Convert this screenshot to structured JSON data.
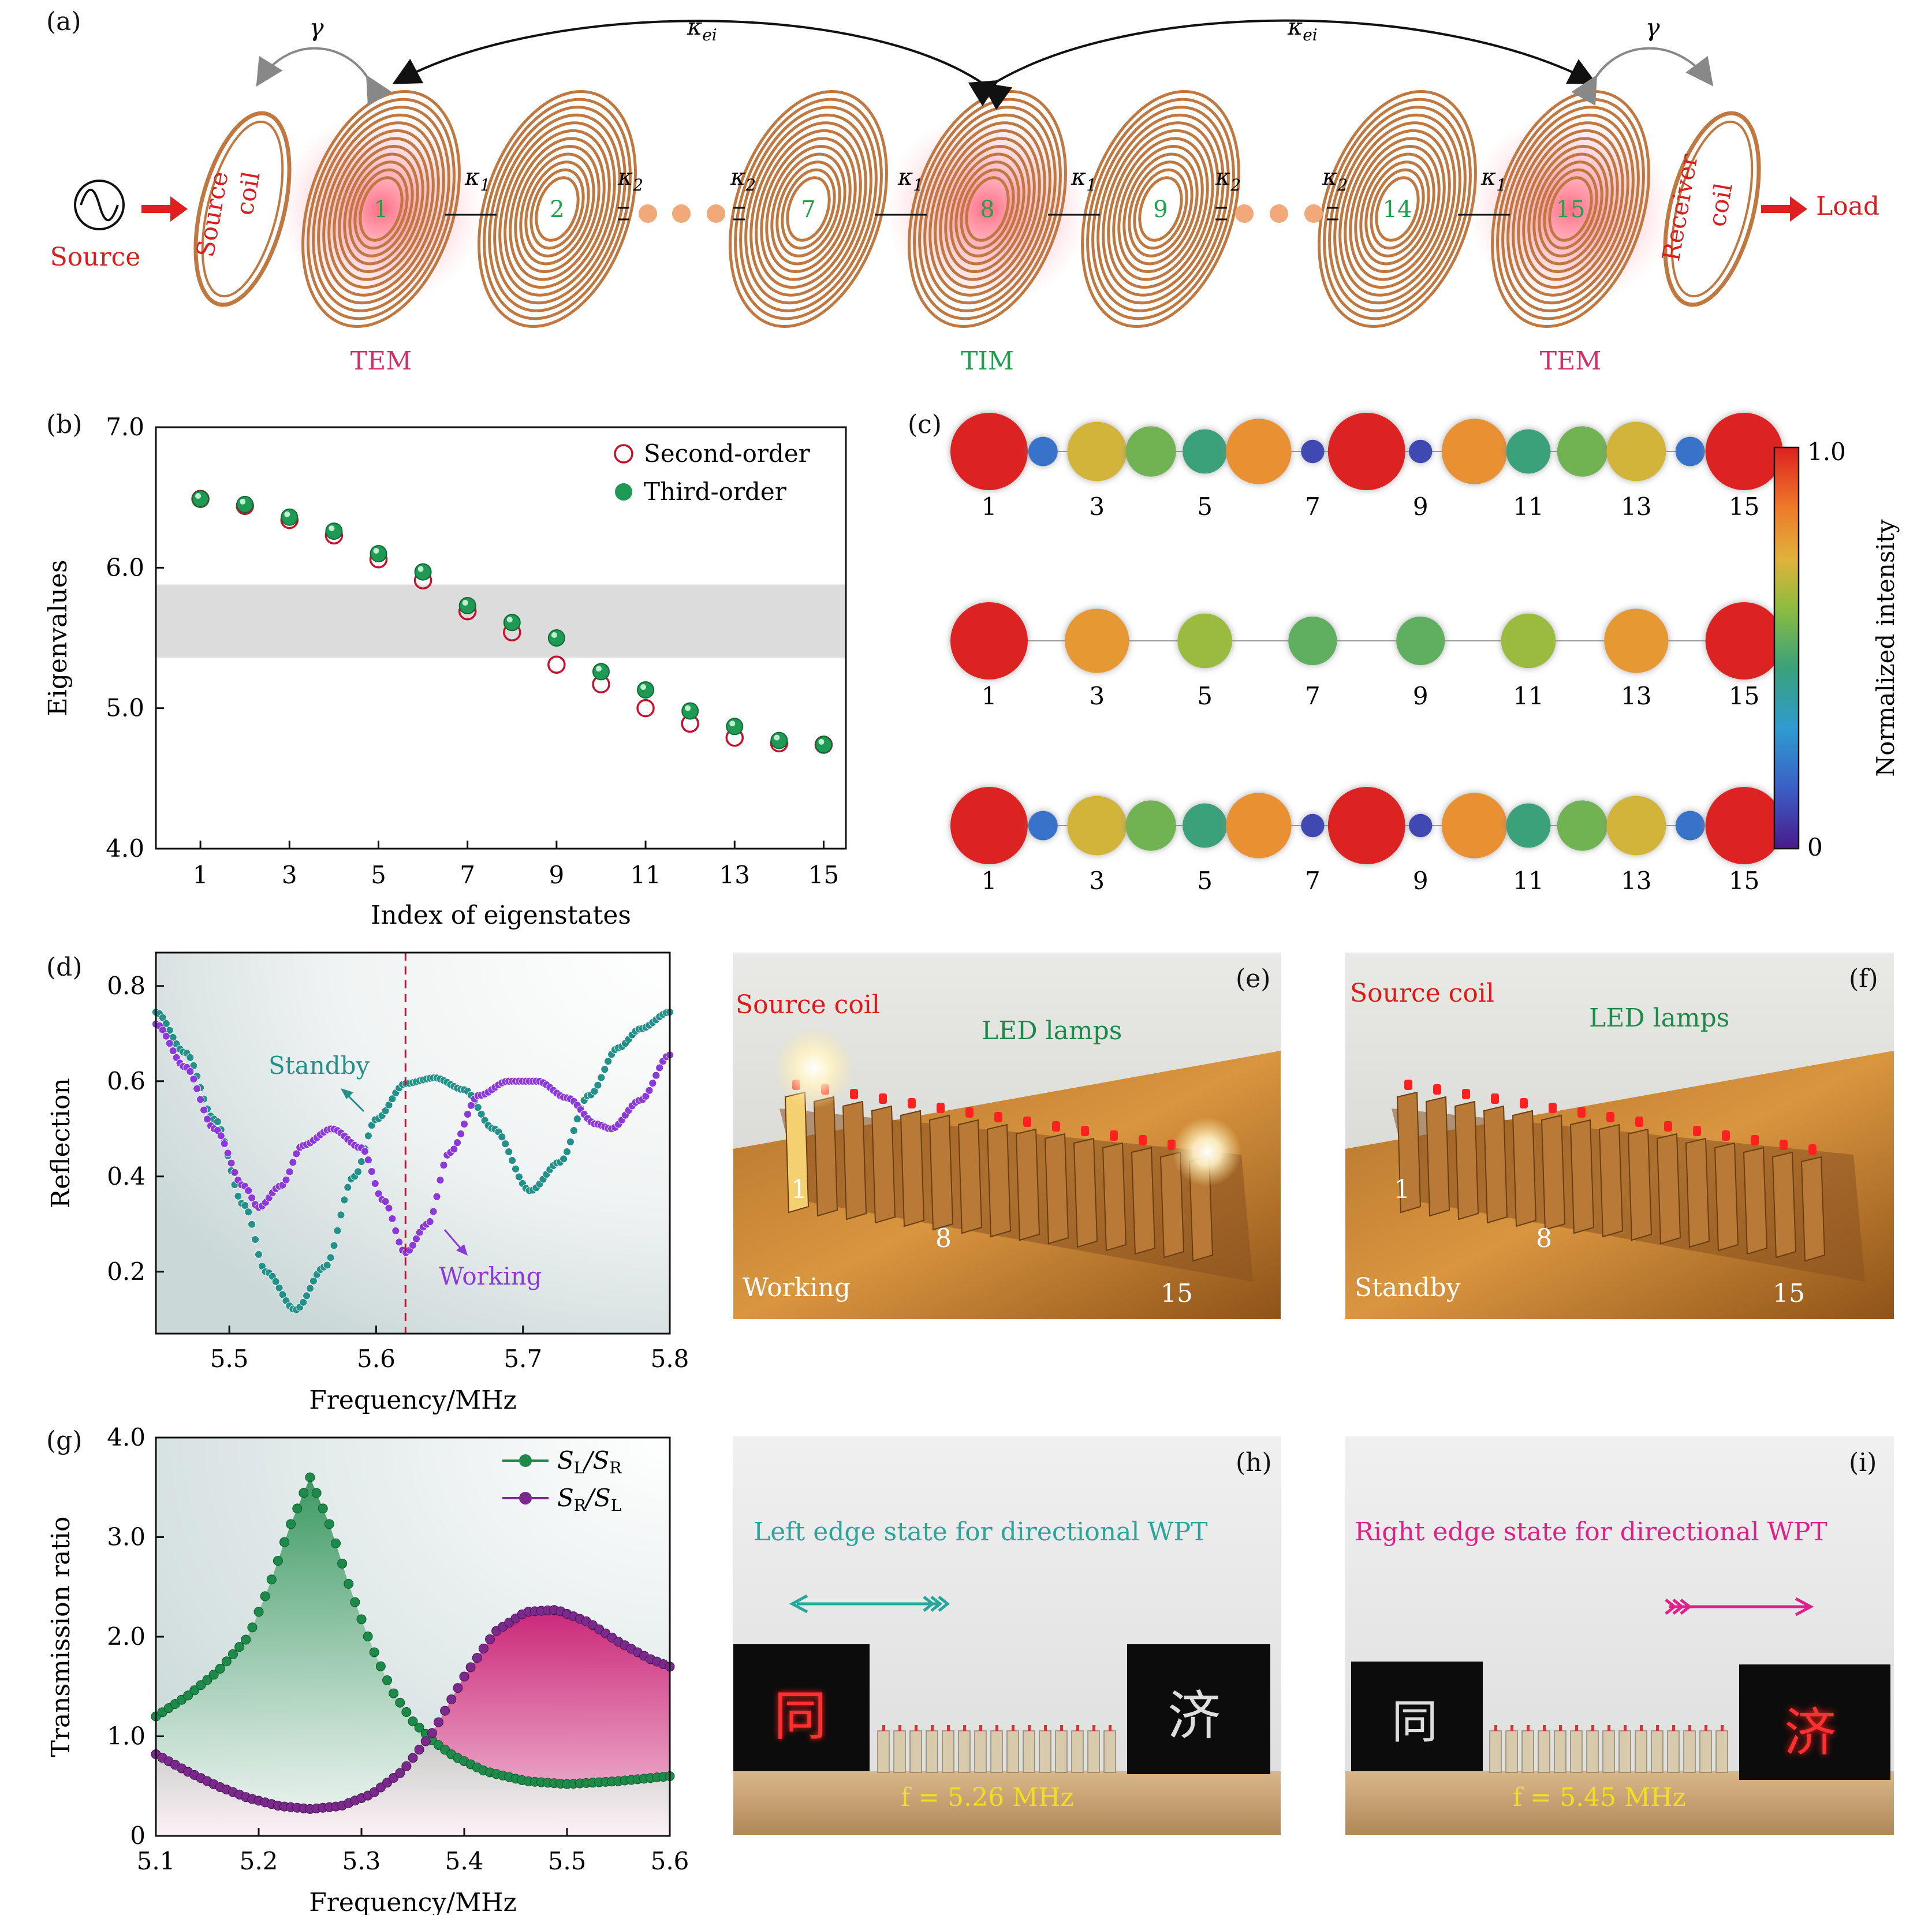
{
  "panel_a": {
    "letter": "(a)",
    "source_label": "Source",
    "source_coil_label": "Source\ncoil",
    "receiver_coil_label": "Receiver\ncoil",
    "load_label": "Load",
    "gamma": "γ",
    "kappa_ei": "κei",
    "kappa1": "κ1",
    "kappa2": "κ2",
    "coil_numbers": [
      "1",
      "2",
      "7",
      "8",
      "9",
      "14",
      "15"
    ],
    "mode_labels": [
      "TEM",
      "TIM",
      "TEM"
    ],
    "colors": {
      "tem": "#d0306a",
      "tim": "#1fa04a",
      "source": "#d81e1e",
      "coil": "#c07840"
    }
  },
  "panel_b": {
    "letter": "(b)",
    "legend": [
      "Second-order",
      "Third-order"
    ],
    "chart_data": {
      "type": "scatter",
      "xlabel": "Index of eigenstates",
      "ylabel": "Eigenvalues",
      "xlim": [
        0.0,
        15.5
      ],
      "ylim": [
        4.0,
        7.0
      ],
      "xticks": [
        1,
        3,
        5,
        7,
        9,
        11,
        13,
        15
      ],
      "yticks": [
        "4.0",
        "5.0",
        "6.0",
        "7.0"
      ],
      "band": [
        5.36,
        5.88
      ],
      "x": [
        1,
        2,
        3,
        4,
        5,
        6,
        7,
        8,
        9,
        10,
        11,
        12,
        13,
        14,
        15
      ],
      "series": [
        {
          "name": "Second-order",
          "values": [
            6.49,
            6.44,
            6.34,
            6.23,
            6.06,
            5.91,
            5.69,
            5.54,
            5.31,
            5.17,
            5.0,
            4.89,
            4.79,
            4.75,
            4.74
          ]
        },
        {
          "name": "Third-order",
          "values": [
            6.49,
            6.45,
            6.36,
            6.26,
            6.1,
            5.97,
            5.73,
            5.61,
            5.5,
            5.26,
            5.13,
            4.98,
            4.87,
            4.77,
            4.74
          ]
        }
      ]
    }
  },
  "panel_c": {
    "letter": "(c)",
    "colorbar": {
      "max": "1.0",
      "min": "0",
      "label": "Normalized intensity"
    },
    "chart_data": {
      "type": "heatmap",
      "site_labels": [
        "1",
        "3",
        "5",
        "7",
        "9",
        "11",
        "13",
        "15"
      ],
      "rows": [
        [
          1.0,
          0.2,
          0.7,
          0.55,
          0.45,
          0.8,
          0.1,
          1.0,
          0.1,
          0.8,
          0.45,
          0.55,
          0.7,
          0.2,
          1.0
        ],
        [
          1.0,
          0.0,
          0.78,
          0.0,
          0.62,
          0.0,
          0.52,
          0.0,
          0.52,
          0.0,
          0.62,
          0.0,
          0.78,
          0.0,
          1.0
        ],
        [
          1.0,
          0.2,
          0.7,
          0.55,
          0.45,
          0.8,
          0.1,
          1.0,
          0.1,
          0.8,
          0.45,
          0.55,
          0.7,
          0.2,
          1.0
        ]
      ]
    }
  },
  "panel_d": {
    "letter": "(d)",
    "standby_label": "Standby",
    "working_label": "Working",
    "chart_data": {
      "type": "line",
      "xlabel": "Frequency/MHz",
      "ylabel": "Reflection",
      "xlim": [
        5.45,
        5.8
      ],
      "ylim": [
        0.07,
        0.87
      ],
      "xticks": [
        "5.5",
        "5.6",
        "5.7",
        "5.8"
      ],
      "yticks": [
        "0.2",
        "0.4",
        "0.6",
        "0.8"
      ],
      "marker_x": 5.62,
      "series": [
        {
          "name": "Standby",
          "color": "#23918a",
          "x": [
            5.45,
            5.47,
            5.49,
            5.51,
            5.525,
            5.545,
            5.565,
            5.585,
            5.6,
            5.62,
            5.64,
            5.66,
            5.68,
            5.705,
            5.725,
            5.745,
            5.765,
            5.78,
            5.8
          ],
          "y": [
            0.745,
            0.66,
            0.52,
            0.34,
            0.2,
            0.12,
            0.21,
            0.4,
            0.52,
            0.595,
            0.607,
            0.582,
            0.5,
            0.37,
            0.43,
            0.57,
            0.67,
            0.71,
            0.745
          ]
        },
        {
          "name": "Working",
          "color": "#8b39d9",
          "x": [
            5.45,
            5.47,
            5.49,
            5.51,
            5.52,
            5.535,
            5.55,
            5.57,
            5.59,
            5.605,
            5.62,
            5.635,
            5.65,
            5.67,
            5.69,
            5.71,
            5.73,
            5.75,
            5.76,
            5.78,
            5.8
          ],
          "y": [
            0.72,
            0.63,
            0.5,
            0.38,
            0.335,
            0.38,
            0.465,
            0.5,
            0.46,
            0.35,
            0.24,
            0.3,
            0.45,
            0.57,
            0.6,
            0.6,
            0.565,
            0.51,
            0.5,
            0.56,
            0.655
          ]
        }
      ]
    }
  },
  "panel_e": {
    "letter": "(e)",
    "source_coil": "Source coil",
    "led_lamps": "LED lamps",
    "mode": "Working",
    "n1": "1",
    "n8": "8",
    "n15": "15"
  },
  "panel_f": {
    "letter": "(f)",
    "source_coil": "Source coil",
    "led_lamps": "LED lamps",
    "mode": "Standby",
    "n1": "1",
    "n8": "8",
    "n15": "15"
  },
  "panel_g": {
    "letter": "(g)",
    "chart_data": {
      "type": "area",
      "xlabel": "Frequency/MHz",
      "ylabel": "Transmission ratio",
      "xlim": [
        5.1,
        5.6
      ],
      "ylim": [
        0.0,
        4.0
      ],
      "xticks": [
        "5.1",
        "5.2",
        "5.3",
        "5.4",
        "5.5",
        "5.6"
      ],
      "yticks": [
        "0",
        "1.0",
        "2.0",
        "3.0",
        "4.0"
      ],
      "series": [
        {
          "name": "SL/SR",
          "color": "#1e8a4a",
          "x": [
            5.1,
            5.13,
            5.16,
            5.19,
            5.21,
            5.23,
            5.25,
            5.27,
            5.29,
            5.31,
            5.33,
            5.35,
            5.37,
            5.39,
            5.42,
            5.46,
            5.5,
            5.55,
            5.6
          ],
          "y": [
            1.2,
            1.4,
            1.65,
            2.0,
            2.5,
            3.1,
            3.6,
            3.1,
            2.45,
            1.9,
            1.45,
            1.15,
            0.95,
            0.8,
            0.65,
            0.55,
            0.52,
            0.55,
            0.6
          ]
        },
        {
          "name": "SR/SL",
          "color": "#7a2a8a",
          "x": [
            5.1,
            5.13,
            5.16,
            5.19,
            5.22,
            5.25,
            5.28,
            5.31,
            5.34,
            5.37,
            5.4,
            5.43,
            5.46,
            5.49,
            5.52,
            5.55,
            5.58,
            5.6
          ],
          "y": [
            0.82,
            0.65,
            0.5,
            0.38,
            0.3,
            0.27,
            0.3,
            0.42,
            0.65,
            1.05,
            1.6,
            2.05,
            2.25,
            2.27,
            2.15,
            1.95,
            1.78,
            1.7
          ]
        }
      ]
    }
  },
  "panel_h": {
    "letter": "(h)",
    "caption": "Left edge state for directional WPT",
    "freq": "f = 5.26 MHz",
    "char_left": "同",
    "char_right": "济"
  },
  "panel_i": {
    "letter": "(i)",
    "caption": "Right edge state for directional WPT",
    "freq": "f = 5.45 MHz",
    "char_left": "同",
    "char_right": "济"
  }
}
